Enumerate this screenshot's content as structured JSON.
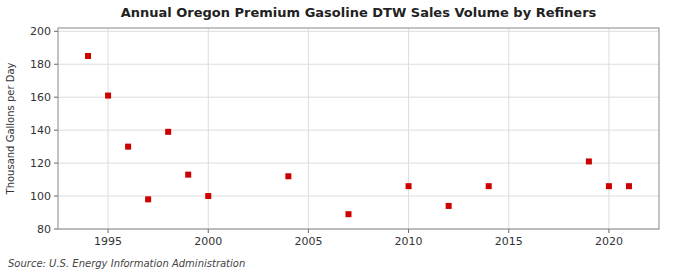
{
  "chart_data": {
    "type": "scatter",
    "title": "Annual Oregon Premium Gasoline DTW Sales Volume by Refiners",
    "ylabel": "Thousand Gallons per Day",
    "source": "Source: U.S. Energy Information Administration",
    "x": [
      1994,
      1995,
      1996,
      1997,
      1998,
      1999,
      2000,
      2004,
      2007,
      2010,
      2012,
      2014,
      2019,
      2020,
      2021
    ],
    "values": [
      185,
      161,
      130,
      98,
      139,
      113,
      100,
      112,
      89,
      106,
      94,
      106,
      121,
      106,
      106
    ],
    "color": "#cc0000",
    "marker": "square",
    "xlim": [
      1992.5,
      2022.5
    ],
    "ylim": [
      80,
      202
    ],
    "xticks": [
      1995,
      2000,
      2005,
      2010,
      2015,
      2020
    ],
    "yticks": [
      80,
      100,
      120,
      140,
      160,
      180,
      200
    ],
    "grid": true
  }
}
